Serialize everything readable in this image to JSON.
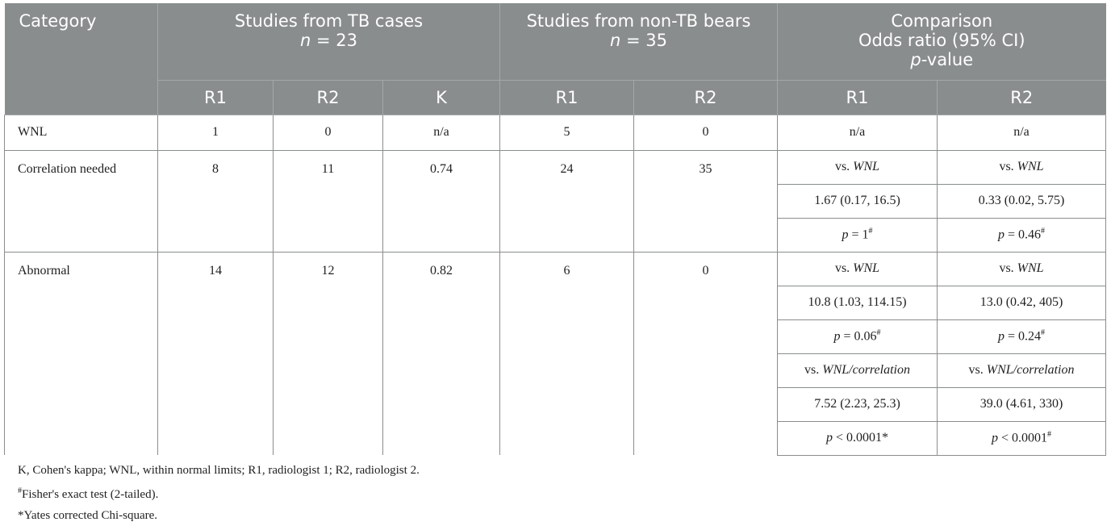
{
  "header": {
    "category": "Category",
    "tb_group": "Studies from TB cases",
    "tb_n": "n = 23",
    "nontb_group": "Studies from non-TB bears",
    "nontb_n": "n = 35",
    "comparison_line1": "Comparison",
    "comparison_line2": "Odds ratio (95% CI)",
    "comparison_line3": "p-value",
    "sub": [
      "R1",
      "R2",
      "K",
      "R1",
      "R2",
      "R1",
      "R2"
    ]
  },
  "rows": {
    "wnl": {
      "label": "WNL",
      "tb_r1": "1",
      "tb_r2": "0",
      "k": "n/a",
      "nontb_r1": "5",
      "nontb_r2": "0",
      "cmp_r1": "n/a",
      "cmp_r2": "n/a"
    },
    "corr": {
      "label": "Correlation needed",
      "tb_r1": "8",
      "tb_r2": "11",
      "k": "0.74",
      "nontb_r1": "24",
      "nontb_r2": "35",
      "cmp": [
        {
          "r1": "vs. WNL",
          "r2": "vs. WNL"
        },
        {
          "r1": "1.67 (0.17, 16.5)",
          "r2": "0.33 (0.02, 5.75)"
        },
        {
          "r1": "p = 1#",
          "r2": "p = 0.46#"
        }
      ]
    },
    "abn": {
      "label": "Abnormal",
      "tb_r1": "14",
      "tb_r2": "12",
      "k": "0.82",
      "nontb_r1": "6",
      "nontb_r2": "0",
      "cmp": [
        {
          "r1": "vs. WNL",
          "r2": "vs. WNL"
        },
        {
          "r1": "10.8 (1.03, 114.15)",
          "r2": "13.0 (0.42, 405)"
        },
        {
          "r1": "p = 0.06#",
          "r2": "p = 0.24#"
        },
        {
          "r1": "vs. WNL/correlation",
          "r2": "vs. WNL/correlation"
        },
        {
          "r1": "7.52 (2.23, 25.3)",
          "r2": "39.0 (4.61, 330)"
        },
        {
          "r1": "p < 0.0001*",
          "r2": "p < 0.0001#"
        }
      ]
    }
  },
  "notes": {
    "abbrev": "K, Cohen's kappa; WNL, within normal limits; R1, radiologist 1; R2, radiologist 2.",
    "hash": "# Fisher's exact test (2-tailed).",
    "star": "*Yates corrected Chi-square."
  }
}
